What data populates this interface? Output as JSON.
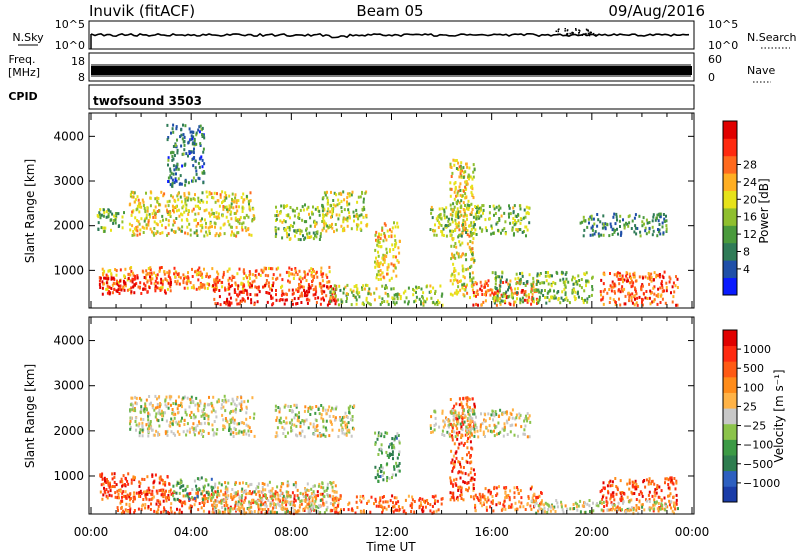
{
  "header": {
    "station": "Inuvik (fitACF)",
    "beam": "Beam 05",
    "date": "09/Aug/2016"
  },
  "top_panels": {
    "nsky_label": "N.Sky",
    "nsky_ticks": [
      "10^5",
      "10^0"
    ],
    "nsearch_label": "N.Search",
    "nsearch_ticks": [
      "10^5",
      "10^0"
    ],
    "freq_label_1": "Freq.",
    "freq_label_2": "[MHz]",
    "freq_ticks": [
      "18",
      "8"
    ],
    "nave_label": "Nave",
    "nave_ticks": [
      "60",
      "0"
    ],
    "cpid_label": "CPID",
    "cpid_value": "twofsound 3503"
  },
  "chart_data": [
    {
      "type": "heatmap",
      "title": "",
      "xlabel": "",
      "ylabel": "Slant Range [km]",
      "y_ticks": [
        "1000",
        "2000",
        "3000",
        "4000"
      ],
      "ylim": [
        180,
        4500
      ],
      "xlim": [
        0,
        24
      ],
      "colorbar_label": "Power [dB]",
      "colorbar_ticks": [
        "4",
        "8",
        "12",
        "16",
        "20",
        "24",
        "28"
      ],
      "colorbar_colors": [
        "#0a1bff",
        "#1f4fa8",
        "#2f7b57",
        "#4a9a3c",
        "#8fbf2e",
        "#e6e21a",
        "#ffae22",
        "#ff6a1e",
        "#ff2a10",
        "#e00000"
      ],
      "regions": [
        {
          "x0": 0.4,
          "x1": 9.5,
          "y0": 600,
          "y1": 1100,
          "level": 0.72
        },
        {
          "x0": 0.3,
          "x1": 3.2,
          "y0": 500,
          "y1": 900,
          "level": 0.92
        },
        {
          "x0": 4.8,
          "x1": 9.8,
          "y0": 250,
          "y1": 700,
          "level": 0.9
        },
        {
          "x0": 1.5,
          "x1": 6.5,
          "y0": 1800,
          "y1": 2800,
          "level": 0.55
        },
        {
          "x0": 0.2,
          "x1": 1.3,
          "y0": 1900,
          "y1": 2400,
          "level": 0.4
        },
        {
          "x0": 7.3,
          "x1": 9.3,
          "y0": 1700,
          "y1": 2500,
          "level": 0.45
        },
        {
          "x0": 9.2,
          "x1": 11.0,
          "y0": 1900,
          "y1": 2800,
          "level": 0.5
        },
        {
          "x0": 11.3,
          "x1": 12.3,
          "y0": 800,
          "y1": 2100,
          "level": 0.6
        },
        {
          "x0": 9.5,
          "x1": 14.0,
          "y0": 250,
          "y1": 700,
          "level": 0.45
        },
        {
          "x0": 14.3,
          "x1": 15.3,
          "y0": 400,
          "y1": 3500,
          "level": 0.55
        },
        {
          "x0": 15.2,
          "x1": 17.8,
          "y0": 250,
          "y1": 800,
          "level": 0.8
        },
        {
          "x0": 16.0,
          "x1": 20.0,
          "y0": 300,
          "y1": 1000,
          "level": 0.4
        },
        {
          "x0": 13.5,
          "x1": 17.5,
          "y0": 1800,
          "y1": 2500,
          "level": 0.45
        },
        {
          "x0": 20.3,
          "x1": 23.4,
          "y0": 250,
          "y1": 1000,
          "level": 0.78
        },
        {
          "x0": 19.5,
          "x1": 23.0,
          "y0": 1800,
          "y1": 2300,
          "level": 0.3
        },
        {
          "x0": 3.0,
          "x1": 4.5,
          "y0": 2900,
          "y1": 4300,
          "level": 0.25
        }
      ]
    },
    {
      "type": "heatmap",
      "title": "",
      "xlabel": "Time UT",
      "ylabel": "Slant Range [km]",
      "x_ticks": [
        "00:00",
        "04:00",
        "08:00",
        "12:00",
        "16:00",
        "20:00",
        "00:00"
      ],
      "y_ticks": [
        "1000",
        "2000",
        "3000",
        "4000"
      ],
      "ylim": [
        180,
        4500
      ],
      "xlim": [
        0,
        24
      ],
      "colorbar_label": "Velocity [m s⁻¹]",
      "colorbar_ticks": [
        "1000",
        "500",
        "100",
        "25",
        "−25",
        "−100",
        "−500",
        "−1000"
      ],
      "colorbar_colors": [
        "#1a3ca8",
        "#2d5fc0",
        "#2e7d4f",
        "#3c9a45",
        "#8bc34a",
        "#c8c8c8",
        "#ffb347",
        "#ff8c1a",
        "#ff5a14",
        "#ff2a10",
        "#e00000"
      ],
      "regions": [
        {
          "x0": 0.3,
          "x1": 3.2,
          "y0": 500,
          "y1": 1100,
          "level": 0.82
        },
        {
          "x0": 1.0,
          "x1": 9.3,
          "y0": 200,
          "y1": 700,
          "level": 0.75
        },
        {
          "x0": 4.8,
          "x1": 9.8,
          "y0": 200,
          "y1": 900,
          "level": 0.5
        },
        {
          "x0": 1.5,
          "x1": 6.5,
          "y0": 1900,
          "y1": 2800,
          "level": 0.5
        },
        {
          "x0": 7.3,
          "x1": 10.5,
          "y0": 1900,
          "y1": 2600,
          "level": 0.5
        },
        {
          "x0": 3.2,
          "x1": 4.8,
          "y0": 500,
          "y1": 1000,
          "level": 0.3
        },
        {
          "x0": 9.5,
          "x1": 14.0,
          "y0": 200,
          "y1": 600,
          "level": 0.75
        },
        {
          "x0": 14.3,
          "x1": 15.3,
          "y0": 500,
          "y1": 2800,
          "level": 0.8
        },
        {
          "x0": 15.2,
          "x1": 18.0,
          "y0": 250,
          "y1": 800,
          "level": 0.75
        },
        {
          "x0": 13.5,
          "x1": 17.5,
          "y0": 1900,
          "y1": 2500,
          "level": 0.5
        },
        {
          "x0": 20.3,
          "x1": 23.4,
          "y0": 250,
          "y1": 1000,
          "level": 0.8
        },
        {
          "x0": 11.3,
          "x1": 12.3,
          "y0": 900,
          "y1": 2000,
          "level": 0.35
        },
        {
          "x0": 17.5,
          "x1": 23.5,
          "y0": 200,
          "y1": 500,
          "level": 0.5
        }
      ]
    }
  ]
}
